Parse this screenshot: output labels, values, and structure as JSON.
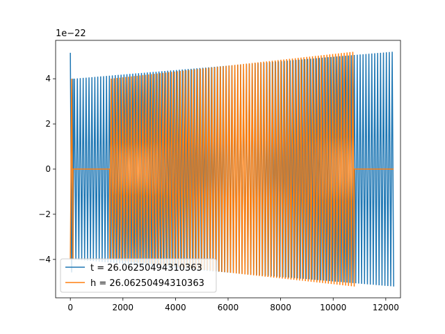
{
  "chart_data": {
    "type": "line",
    "title": "",
    "xlabel": "",
    "ylabel": "",
    "y_offset_label": "1e−22",
    "xlim": [
      -560,
      12560
    ],
    "ylim": [
      -5.7,
      5.7
    ],
    "xticks": [
      0,
      2000,
      4000,
      6000,
      8000,
      10000,
      12000
    ],
    "xtick_labels": [
      "0",
      "2000",
      "4000",
      "6000",
      "8000",
      "10000",
      "12000"
    ],
    "yticks": [
      -4,
      -2,
      0,
      2,
      4
    ],
    "ytick_labels": [
      "−4",
      "−2",
      "0",
      "2",
      "4"
    ],
    "grid": false,
    "legend_position": "lower-left",
    "series": [
      {
        "name": "t = 26.06250494310363",
        "color": "#1f77b4",
        "segments": [
          {
            "x_start": 0,
            "x_end": 100,
            "cycles": 1,
            "amp_start": 5.15,
            "amp_end": 4.0,
            "initial_phase": "max"
          },
          {
            "x_start": 100,
            "x_end": 12300,
            "cycles": 110,
            "amp_start": 4.0,
            "amp_end": 5.2
          }
        ]
      },
      {
        "name": "h = 26.06250494310363",
        "color": "#ff7f0e",
        "segments": [
          {
            "x_start": 0,
            "x_end": 100,
            "cycles": 1,
            "amp_start": 4.0,
            "amp_end": 4.0
          },
          {
            "x_start": 100,
            "x_end": 1500,
            "flat_value": 0
          },
          {
            "x_start": 1500,
            "x_end": 10800,
            "cycles": 85,
            "amp_start": 4.0,
            "amp_end": 5.2
          },
          {
            "x_start": 10800,
            "x_end": 12300,
            "flat_value": 0
          }
        ]
      }
    ]
  }
}
